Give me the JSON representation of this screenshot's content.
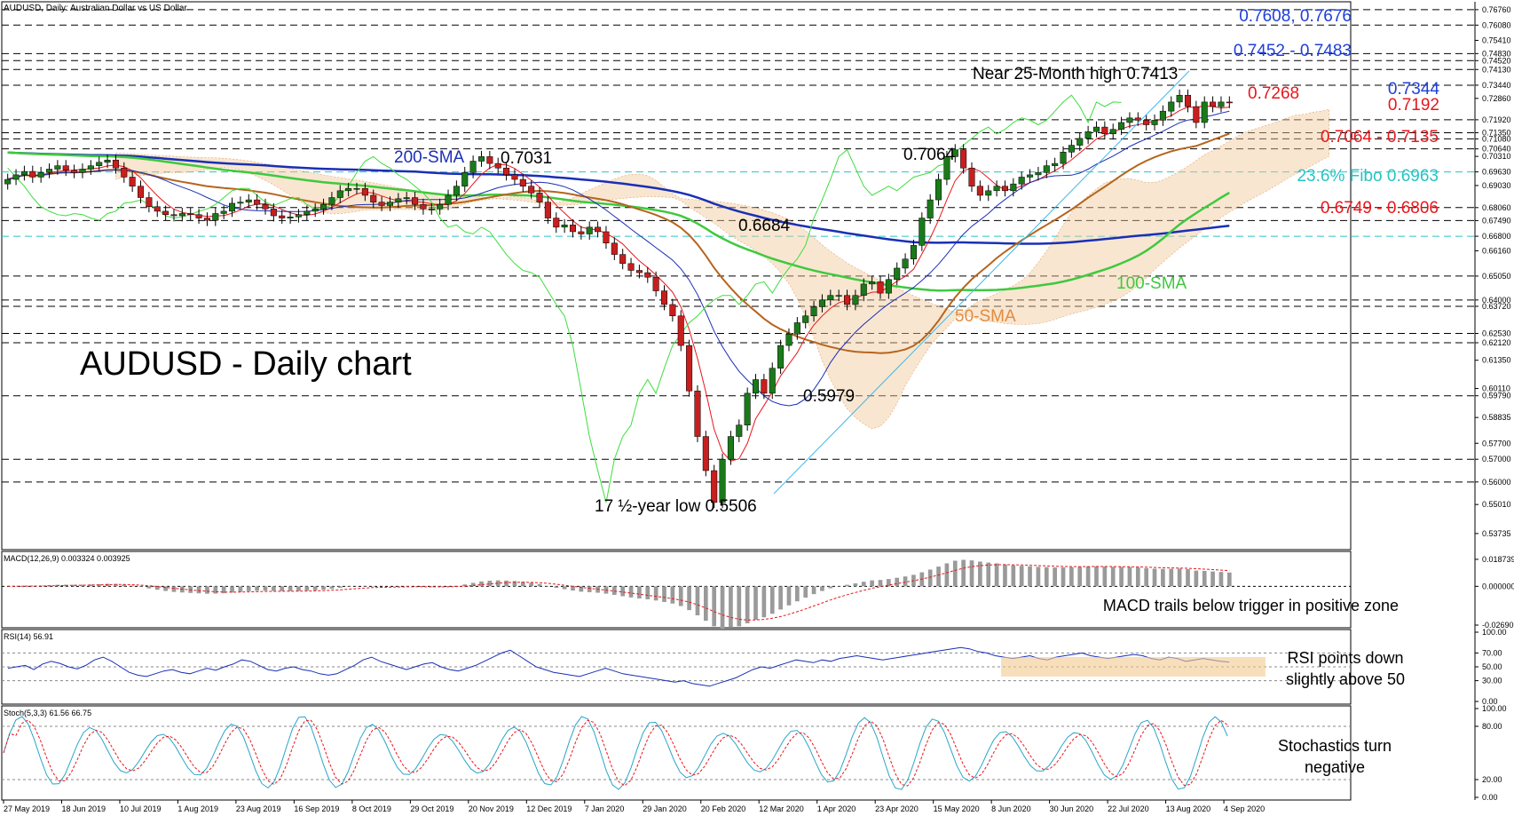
{
  "header": {
    "title": "AUDUSD, Daily: Australian Dollar vs US Dollar"
  },
  "colors": {
    "blue_text": "#1f3fd8",
    "red_text": "#e8161c",
    "cyan_text": "#27c3c6",
    "sma200": "#1a2fb5",
    "sma100": "#3ec93e",
    "sma50": "#b5651d",
    "candle_up": "#1a7a1a",
    "candle_down": "#c81e1e"
  },
  "chart_data": [
    {
      "type": "line",
      "subtype": "candlestick",
      "title": "AUDUSD - Daily chart",
      "x_ticks": [
        "27 May 2019",
        "18 Jun 2019",
        "10 Jul 2019",
        "1 Aug 2019",
        "23 Aug 2019",
        "16 Sep 2019",
        "8 Oct 2019",
        "29 Oct 2019",
        "20 Nov 2019",
        "12 Dec 2019",
        "7 Jan 2020",
        "29 Jan 2020",
        "20 Feb 2020",
        "12 Mar 2020",
        "1 Apr 2020",
        "23 Apr 2020",
        "15 May 2020",
        "8 Jun 2020",
        "30 Jun 2020",
        "22 Jul 2020",
        "13 Aug 2020",
        "4 Sep 2020"
      ],
      "y_ticks": [
        "0.76760",
        "0.76080",
        "0.75410",
        "0.74830",
        "0.74520",
        "0.74130",
        "0.73440",
        "0.72860",
        "0.71920",
        "0.71350",
        "0.71080",
        "0.70640",
        "0.70310",
        "0.69630",
        "0.69030",
        "0.68060",
        "0.67490",
        "0.66800",
        "0.66160",
        "0.65050",
        "0.64000",
        "0.63720",
        "0.62530",
        "0.62120",
        "0.61350",
        "0.60110",
        "0.59790",
        "0.58835",
        "0.57700",
        "0.57000",
        "0.56000",
        "0.55010",
        "0.53735"
      ],
      "ylim": [
        0.533,
        0.7695
      ],
      "close": [
        0.693,
        0.695,
        0.6965,
        0.694,
        0.696,
        0.6975,
        0.699,
        0.697,
        0.696,
        0.6975,
        0.699,
        0.7005,
        0.7015,
        0.698,
        0.694,
        0.69,
        0.685,
        0.681,
        0.679,
        0.6775,
        0.677,
        0.678,
        0.6775,
        0.676,
        0.675,
        0.678,
        0.679,
        0.6825,
        0.683,
        0.684,
        0.682,
        0.68,
        0.677,
        0.676,
        0.6765,
        0.6775,
        0.679,
        0.68,
        0.682,
        0.685,
        0.688,
        0.689,
        0.689,
        0.686,
        0.683,
        0.6815,
        0.683,
        0.6845,
        0.685,
        0.682,
        0.68,
        0.68,
        0.682,
        0.686,
        0.69,
        0.696,
        0.701,
        0.703,
        0.7,
        0.698,
        0.695,
        0.693,
        0.69,
        0.687,
        0.683,
        0.676,
        0.672,
        0.673,
        0.67,
        0.669,
        0.672,
        0.67,
        0.665,
        0.66,
        0.656,
        0.653,
        0.652,
        0.65,
        0.644,
        0.638,
        0.633,
        0.62,
        0.6,
        0.58,
        0.565,
        0.551,
        0.57,
        0.58,
        0.585,
        0.599,
        0.605,
        0.599,
        0.61,
        0.62,
        0.625,
        0.63,
        0.633,
        0.637,
        0.64,
        0.642,
        0.642,
        0.638,
        0.642,
        0.647,
        0.648,
        0.643,
        0.649,
        0.654,
        0.658,
        0.664,
        0.676,
        0.684,
        0.693,
        0.703,
        0.706,
        0.698,
        0.69,
        0.686,
        0.688,
        0.69,
        0.688,
        0.691,
        0.694,
        0.695,
        0.696,
        0.699,
        0.7,
        0.705,
        0.708,
        0.711,
        0.714,
        0.716,
        0.713,
        0.715,
        0.718,
        0.72,
        0.719,
        0.717,
        0.719,
        0.723,
        0.727,
        0.73,
        0.725,
        0.718,
        0.727,
        0.725,
        0.727,
        0.7268
      ]
    },
    {
      "type": "bar",
      "title": "MACD(12,26,9) 0.003324 0.003925",
      "y_ticks": [
        "0.018739",
        "0.000000",
        "-0.026907"
      ],
      "ylim": [
        -0.0269,
        0.0187
      ]
    },
    {
      "type": "line",
      "title": "RSI(14) 56.91",
      "y_ticks": [
        "100.00",
        "70.00",
        "50.00",
        "30.00",
        "0.00"
      ],
      "ylim": [
        0,
        100
      ],
      "values": [
        48,
        50,
        52,
        46,
        54,
        58,
        55,
        50,
        47,
        52,
        60,
        64,
        58,
        50,
        42,
        38,
        36,
        40,
        44,
        46,
        42,
        40,
        44,
        48,
        45,
        50,
        54,
        60,
        58,
        52,
        46,
        44,
        48,
        50,
        46,
        44,
        40,
        38,
        40,
        46,
        52,
        60,
        64,
        58,
        54,
        50,
        46,
        50,
        54,
        56,
        50,
        46,
        44,
        48,
        52,
        58,
        64,
        70,
        74,
        66,
        58,
        50,
        46,
        42,
        40,
        38,
        36,
        40,
        44,
        48,
        44,
        40,
        38,
        36,
        34,
        32,
        30,
        28,
        30,
        26,
        24,
        22,
        26,
        30,
        34,
        40,
        46,
        50,
        48,
        52,
        56,
        60,
        58,
        56,
        60,
        58,
        62,
        64,
        66,
        64,
        62,
        60,
        62,
        64,
        66,
        68,
        70,
        72,
        74,
        76,
        78,
        76,
        72,
        70,
        66,
        64,
        62,
        64,
        66,
        62,
        60,
        64,
        66,
        68,
        70,
        66,
        64,
        62,
        64,
        66,
        68,
        66,
        62,
        60,
        64,
        62,
        58,
        60,
        62,
        60,
        58,
        56.91
      ]
    },
    {
      "type": "line",
      "title": "Stoch(5,3,3) 61.56 66.75",
      "y_ticks": [
        "100.00",
        "80.00",
        "20.00",
        "0.00"
      ],
      "ylim": [
        0,
        100
      ]
    }
  ],
  "annotations": {
    "main_title": "AUDUSD - Daily chart",
    "sma200": "200-SMA",
    "sma100": "100-SMA",
    "sma50": "50-SMA",
    "peak_7031": "0.7031",
    "peak_7064": "0.7064",
    "low_6684": "0.6684",
    "low_5979": "0.5979",
    "low_5506": "17 ½-year low 0.5506",
    "high_7413": "Near 25-Month high 0.7413",
    "current": "0.7268",
    "levels": {
      "l1": "0.7608, 0.7676",
      "l2": "0.7452 - 0.7483",
      "l3": "0.7344",
      "l4": "0.7192",
      "l5": "0.7064 - 0.7135",
      "l6": "23.6% Fibo 0.6963",
      "l7": "0.6749 - 0.6806"
    },
    "macd_note": "MACD trails below trigger in positive zone",
    "rsi_note_1": "RSI points down",
    "rsi_note_2": "slightly above 50",
    "stoch_note_1": "Stochastics turn",
    "stoch_note_2": "negative"
  }
}
